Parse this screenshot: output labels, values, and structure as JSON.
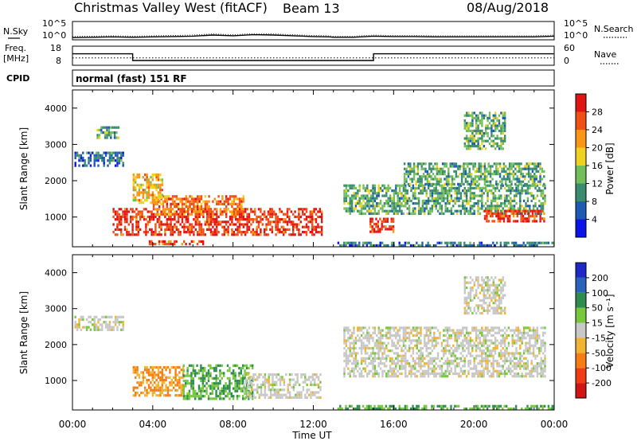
{
  "header": {
    "station": "Christmas Valley West (fitACF)",
    "beam": "Beam 13",
    "date": "08/Aug/2018"
  },
  "strips": {
    "nsky_label": "N.Sky",
    "nsearch_label": "N.Search",
    "nsky_ticks": [
      "10^5",
      "10^0"
    ],
    "nsearch_ticks": [
      "10^5",
      "10^0"
    ],
    "freq_label": "Freq.",
    "freq_unit": "[MHz]",
    "freq_ticks": [
      "18",
      "8"
    ],
    "nave_label": "Nave",
    "nave_ticks": [
      "60",
      "0"
    ],
    "cpid_label": "CPID",
    "cpid_value": "normal (fast) 151 RF"
  },
  "axes": {
    "xlabel": "Time UT",
    "ylabel": "Slant Range [km]",
    "x_ticks": [
      "00:00",
      "04:00",
      "08:00",
      "12:00",
      "16:00",
      "20:00",
      "00:00"
    ],
    "y_ticks": [
      "1000",
      "2000",
      "3000",
      "4000"
    ]
  },
  "colorbars": {
    "power": {
      "label": "Power [dB]",
      "ticks": [
        "4",
        "8",
        "12",
        "16",
        "20",
        "24",
        "28"
      ],
      "colors": [
        "#0a14e6",
        "#1e5ab4",
        "#3a8c6e",
        "#72be5a",
        "#f0d21e",
        "#fa9614",
        "#f05014",
        "#e11414"
      ]
    },
    "velocity": {
      "label": "Velocity [m s⁻¹]",
      "ticks": [
        "200",
        "100",
        "50",
        "15",
        "-15",
        "-50",
        "-100",
        "-200"
      ],
      "colors": [
        "#1e28c8",
        "#2a64b8",
        "#2e8c50",
        "#78c83c",
        "#c8c8c8",
        "#f0b432",
        "#f57d14",
        "#f03c14",
        "#d21414"
      ]
    }
  },
  "chart_data": [
    {
      "type": "line",
      "name": "N.Sky",
      "title": "N.Sky",
      "x_unit": "hours UT",
      "x": [
        0,
        1,
        2,
        3,
        4,
        5,
        6,
        7,
        8,
        9,
        10,
        11,
        12,
        12.8,
        13,
        14,
        15,
        16,
        17,
        18,
        19,
        20,
        21,
        22,
        23,
        24
      ],
      "y_log10": [
        0.6,
        0.7,
        0.8,
        0.7,
        0.8,
        0.9,
        1.0,
        1.3,
        1.1,
        1.4,
        1.3,
        1.1,
        0.9,
        0.8,
        0.7,
        0.7,
        1.0,
        0.9,
        0.9,
        0.8,
        0.8,
        0.8,
        0.8,
        0.8,
        0.8,
        1.0
      ],
      "ylim_log10": [
        0,
        5
      ]
    },
    {
      "type": "line",
      "name": "Freq.",
      "x_unit": "hours UT",
      "x": [
        0,
        3,
        3,
        15,
        15,
        24
      ],
      "y": [
        14,
        14,
        10.5,
        10.5,
        14,
        14
      ],
      "ylim": [
        8,
        18
      ]
    },
    {
      "type": "line",
      "name": "Nave",
      "x_unit": "hours UT",
      "x": [
        0,
        24
      ],
      "y": [
        23,
        23
      ],
      "ylim": [
        0,
        60
      ]
    },
    {
      "type": "heatmap",
      "name": "Power",
      "xlabel": "Time UT",
      "ylabel": "Slant Range [km]",
      "xlim": [
        0,
        24
      ],
      "ylim": [
        180,
        4500
      ],
      "colorbar": "Power [dB]",
      "data_gap_hours": [
        12.8,
        13.0
      ],
      "regions": [
        {
          "t": [
            2.0,
            12.4
          ],
          "r": [
            480,
            1250
          ],
          "level": 28
        },
        {
          "t": [
            4.0,
            8.5
          ],
          "r": [
            1100,
            1600
          ],
          "level": 24
        },
        {
          "t": [
            3.0,
            4.5
          ],
          "r": [
            1400,
            2200
          ],
          "level": 20
        },
        {
          "t": [
            0.1,
            2.5
          ],
          "r": [
            2400,
            2800
          ],
          "level": 8
        },
        {
          "t": [
            1.2,
            2.3
          ],
          "r": [
            3150,
            3500
          ],
          "level": 12
        },
        {
          "t": [
            3.8,
            6.5
          ],
          "r": [
            230,
            360
          ],
          "level": 28
        },
        {
          "t": [
            13.2,
            24
          ],
          "r": [
            200,
            320
          ],
          "level": 8
        },
        {
          "t": [
            14.8,
            16.0
          ],
          "r": [
            580,
            980
          ],
          "level": 28
        },
        {
          "t": [
            13.5,
            23.5
          ],
          "r": [
            1100,
            1900
          ],
          "level": 12
        },
        {
          "t": [
            16.5,
            23.5
          ],
          "r": [
            1900,
            2500
          ],
          "level": 12
        },
        {
          "t": [
            20.5,
            23.5
          ],
          "r": [
            850,
            1200
          ],
          "level": 28
        },
        {
          "t": [
            19.5,
            21.5
          ],
          "r": [
            2900,
            3900
          ],
          "level": 12
        }
      ]
    },
    {
      "type": "heatmap",
      "name": "Velocity",
      "xlabel": "Time UT",
      "ylabel": "Slant Range [km]",
      "xlim": [
        0,
        24
      ],
      "ylim": [
        180,
        4500
      ],
      "colorbar": "Velocity [m s⁻¹]",
      "data_gap_hours": [
        12.8,
        13.0
      ],
      "regions": [
        {
          "t": [
            3.0,
            5.5
          ],
          "r": [
            550,
            1400
          ],
          "level": -50
        },
        {
          "t": [
            5.5,
            9.0
          ],
          "r": [
            500,
            1450
          ],
          "level": 50
        },
        {
          "t": [
            8.5,
            12.4
          ],
          "r": [
            550,
            1200
          ],
          "level": 0
        },
        {
          "t": [
            0.1,
            2.5
          ],
          "r": [
            2400,
            2800
          ],
          "level": 0
        },
        {
          "t": [
            13.5,
            23.5
          ],
          "r": [
            1100,
            2500
          ],
          "level": 0
        },
        {
          "t": [
            19.5,
            21.5
          ],
          "r": [
            2900,
            3900
          ],
          "level": 0
        },
        {
          "t": [
            13.2,
            24
          ],
          "r": [
            200,
            320
          ],
          "level": 50
        }
      ]
    }
  ]
}
